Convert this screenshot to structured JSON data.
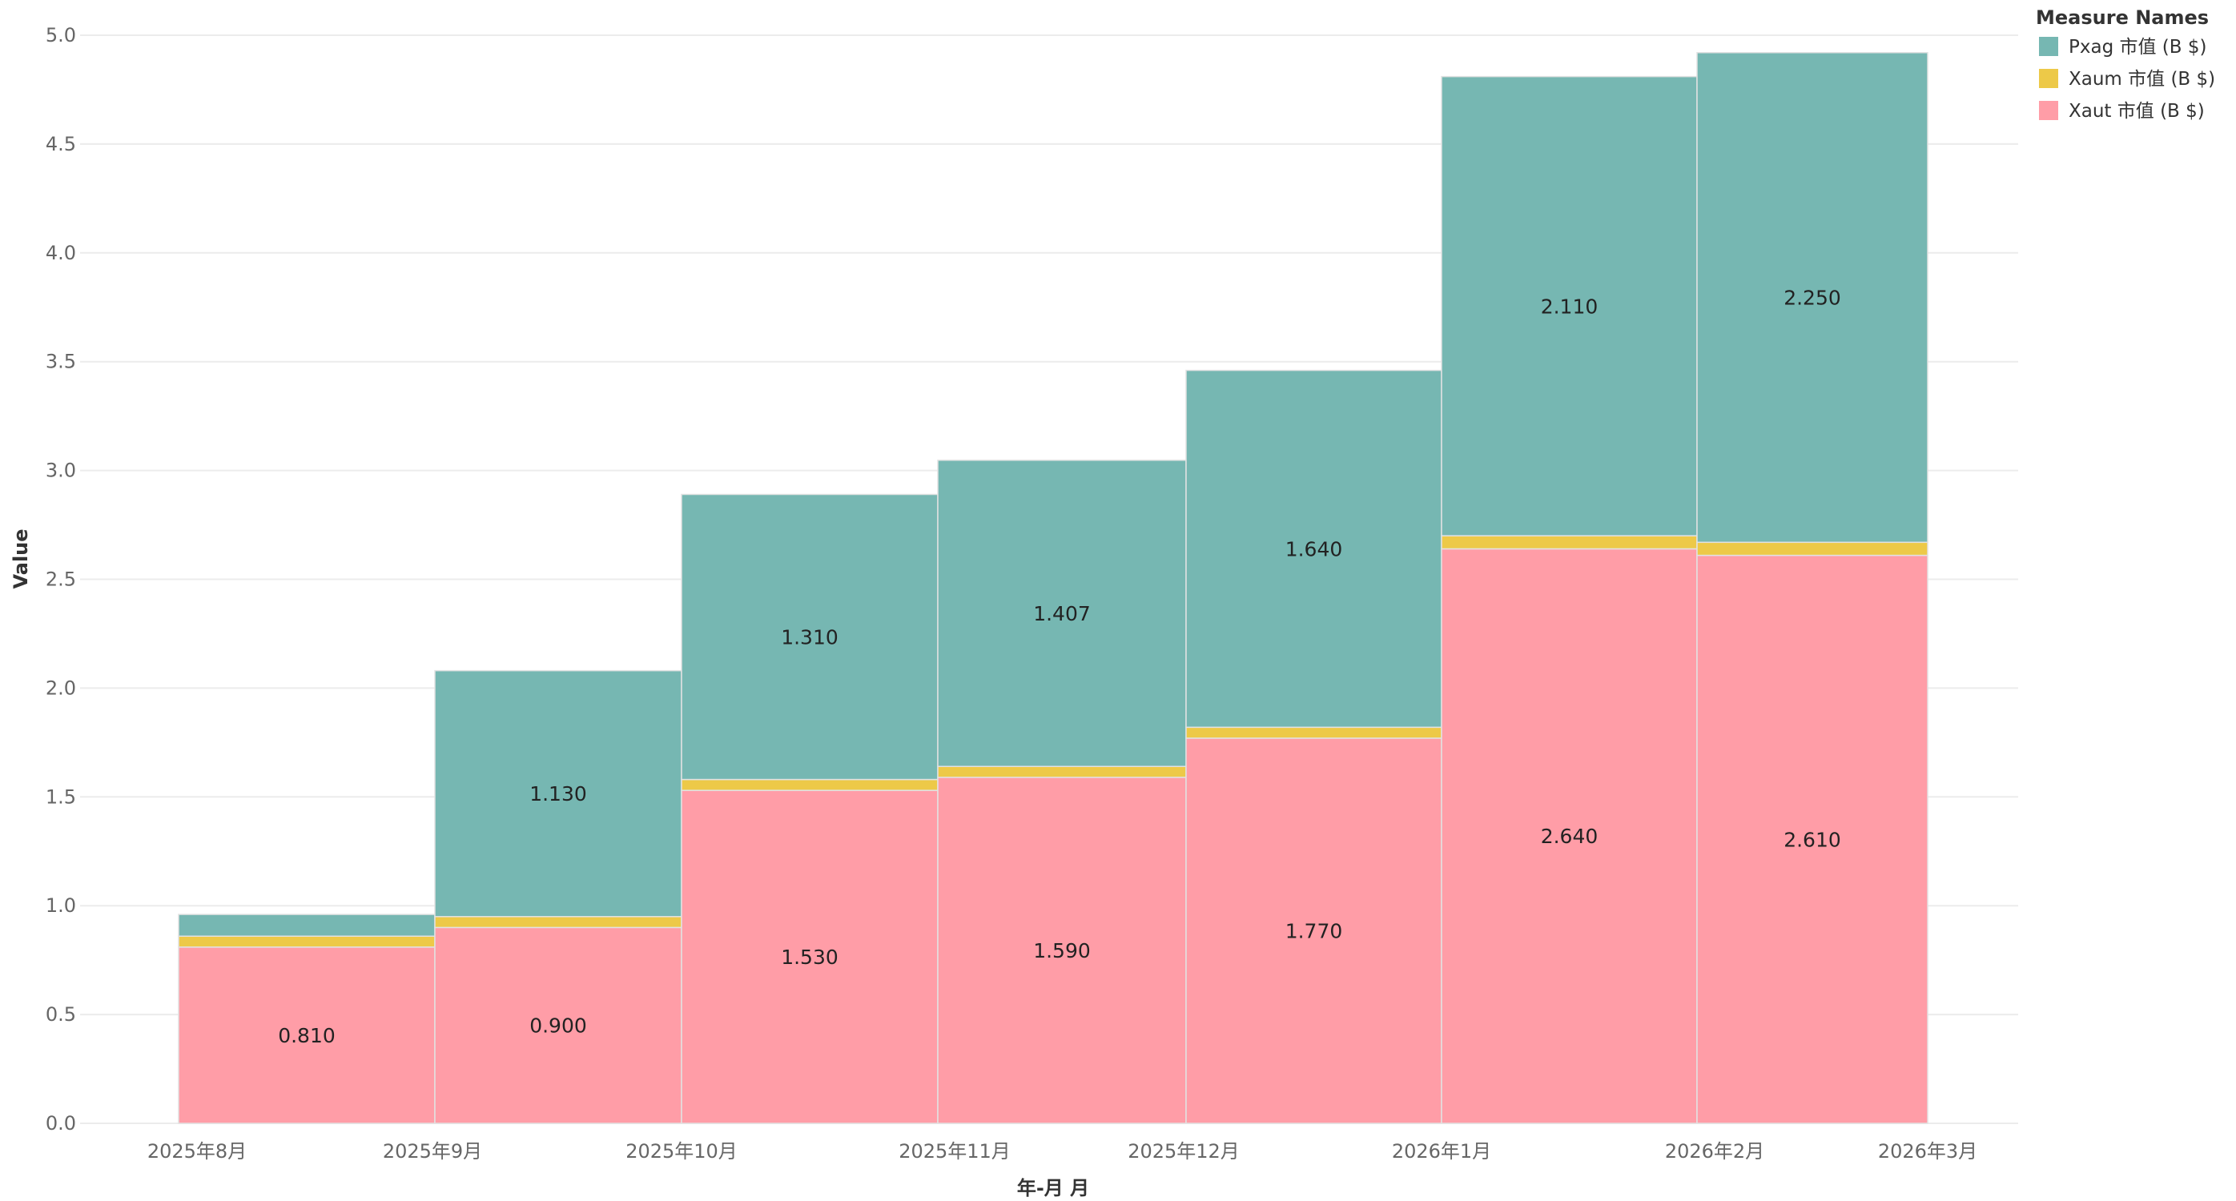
{
  "chart_data": {
    "type": "bar",
    "stacked": true,
    "title": "",
    "xlabel": "年-月 月",
    "ylabel": "Value",
    "ylim": [
      0,
      5.0
    ],
    "yticks": [
      "0.0",
      "0.5",
      "1.0",
      "1.5",
      "2.0",
      "2.5",
      "3.0",
      "3.5",
      "4.0",
      "4.5",
      "5.0"
    ],
    "xticks": [
      "2025年8月",
      "2025年9月",
      "2025年10月",
      "2025年11月",
      "2025年12月",
      "2026年1月",
      "2026年2月",
      "2026年3月"
    ],
    "categories": [
      "2025年8月",
      "2025年9月",
      "2025年10月",
      "2025年11月",
      "2025年12月",
      "2026年1月",
      "2026年2月"
    ],
    "legend_title": "Measure Names",
    "legend_position": "top-right",
    "series": [
      {
        "name": "Xaut 市值 (B $)",
        "color": "#ff9da7",
        "values": [
          0.81,
          0.9,
          1.53,
          1.59,
          1.77,
          2.64,
          2.61
        ],
        "labels": [
          "0.810",
          "0.900",
          "1.530",
          "1.590",
          "1.770",
          "2.640",
          "2.610"
        ]
      },
      {
        "name": "Xaum 市值 (B $)",
        "color": "#edc948",
        "values": [
          0.05,
          0.05,
          0.05,
          0.05,
          0.05,
          0.06,
          0.06
        ],
        "labels": [
          "",
          "",
          "",
          "",
          "",
          "",
          ""
        ]
      },
      {
        "name": "Pxag 市值 (B $)",
        "color": "#76b7b2",
        "values": [
          0.1,
          1.13,
          1.31,
          1.407,
          1.64,
          2.11,
          2.25
        ],
        "labels": [
          "",
          "1.130",
          "1.310",
          "1.407",
          "1.640",
          "2.110",
          "2.250"
        ]
      }
    ],
    "legend_order": [
      "Pxag 市值 (B $)",
      "Xaum 市值 (B $)",
      "Xaut 市值 (B $)"
    ]
  }
}
